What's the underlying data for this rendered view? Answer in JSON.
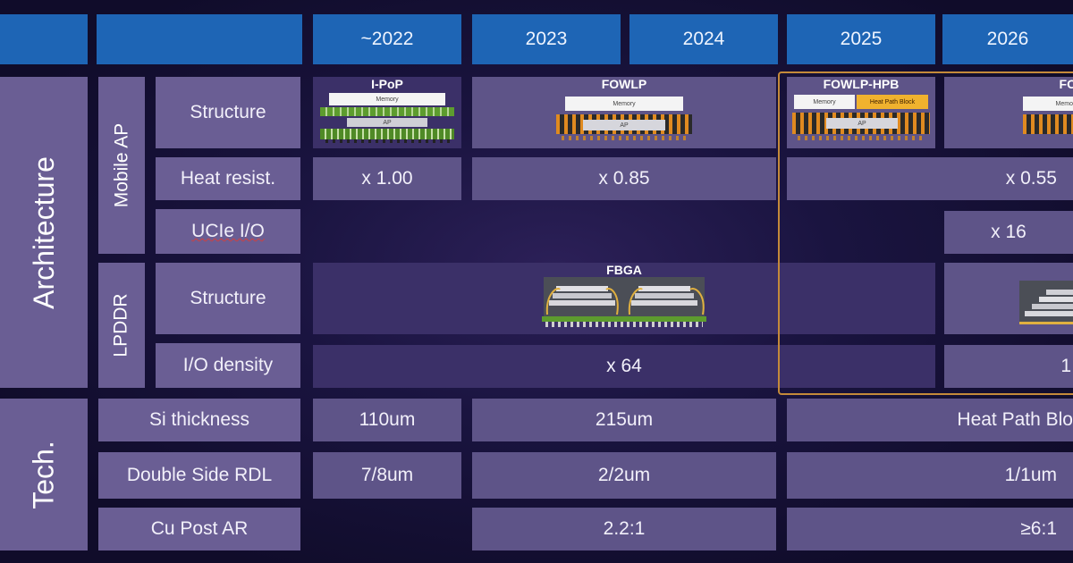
{
  "header": {
    "years": [
      "~2022",
      "2023",
      "2024",
      "2025",
      "2026"
    ]
  },
  "sections": {
    "architecture": "Architecture",
    "tech": "Tech.",
    "mobile_ap": "Mobile AP",
    "lpddr": "LPDDR"
  },
  "rows": {
    "ap_structure": "Structure",
    "heat_resist": "Heat resist.",
    "ucie_io": "UCIe I/O",
    "lpddr_structure": "Structure",
    "io_density": "I/O density",
    "si_thickness": "Si thickness",
    "double_side_rdl": "Double Side RDL",
    "cu_post_ar": "Cu Post AR"
  },
  "values": {
    "heat_2022": "x 1.00",
    "heat_2023": "x 0.85",
    "heat_2025": "x 0.55",
    "ucie_2026": "x 16",
    "io_density_main": "x 64",
    "io_density_2026": "1",
    "si_2022": "110um",
    "si_2023": "215um",
    "si_2025": "Heat Path Blo",
    "rdl_2022": "7/8um",
    "rdl_2023": "2/2um",
    "rdl_2025": "1/1um",
    "cu_2023": "2.2:1",
    "cu_2025": "≥6:1"
  },
  "packages": {
    "ipop": {
      "title": "I-PoP",
      "memory": "Memory",
      "ap": "AP"
    },
    "fowlp": {
      "title": "FOWLP",
      "memory": "Memory",
      "ap": "AP"
    },
    "fowlp_hpb": {
      "title": "FOWLP-HPB",
      "memory": "Memory",
      "hpb": "Heat Path Block",
      "ap": "AP"
    },
    "fowlp_2026": {
      "title": "FO",
      "memory": "Memo"
    },
    "fbga": {
      "title": "FBGA"
    }
  },
  "colors": {
    "header": "#1e65b5",
    "label": "#6a5e94",
    "value": "#5e5488",
    "highlight_border": "#c48a3a",
    "substrate_green": "#5d9c2e",
    "wire_gold": "#e0b040",
    "pin_orange": "#e08a20"
  }
}
